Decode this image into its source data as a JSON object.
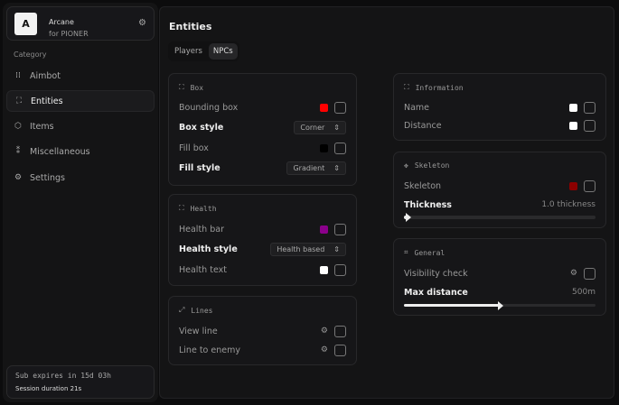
{
  "brand": {
    "logo": "A",
    "name": "Arcane",
    "subtitle": "for PIONER"
  },
  "sidebar": {
    "category": "Category",
    "items": [
      {
        "label": "Aimbot",
        "icon": "crosshair-icon"
      },
      {
        "label": "Entities",
        "icon": "scan-face-icon",
        "active": true
      },
      {
        "label": "Items",
        "icon": "box-icon"
      },
      {
        "label": "Miscellaneous",
        "icon": "grid-icon"
      },
      {
        "label": "Settings",
        "icon": "gear-icon"
      }
    ]
  },
  "subscription": {
    "expires": "Sub expires in 15d 03h",
    "session": "Session duration 21s"
  },
  "main": {
    "title": "Entities",
    "tabs": [
      "Players",
      "NPCs"
    ],
    "active_tab": "NPCs"
  },
  "box": {
    "title": "Box",
    "bounding_box": "Bounding box",
    "bounding_color": "#ff0000",
    "box_style": "Box style",
    "box_style_value": "Corner",
    "fill_box": "Fill box",
    "fill_color": "#000000",
    "fill_style": "Fill style",
    "fill_style_value": "Gradient"
  },
  "health": {
    "title": "Health",
    "bar": "Health bar",
    "bar_color": "#8b008b",
    "style": "Health style",
    "style_value": "Health based",
    "text": "Health text",
    "text_color": "#ffffff"
  },
  "lines": {
    "title": "Lines",
    "view_line": "View line",
    "line_to_enemy": "Line to enemy"
  },
  "information": {
    "title": "Information",
    "name": "Name",
    "name_color": "#ffffff",
    "distance": "Distance",
    "distance_color": "#ffffff"
  },
  "skeleton": {
    "title": "Skeleton",
    "skeleton": "Skeleton",
    "skeleton_color": "#8b0000",
    "thickness": "Thickness",
    "thickness_value": "1.0 thickness",
    "thickness_fraction": 0.0
  },
  "general": {
    "title": "General",
    "visibility": "Visibility check",
    "max_distance": "Max distance",
    "max_distance_value": "500m",
    "max_distance_fraction": 0.5
  }
}
